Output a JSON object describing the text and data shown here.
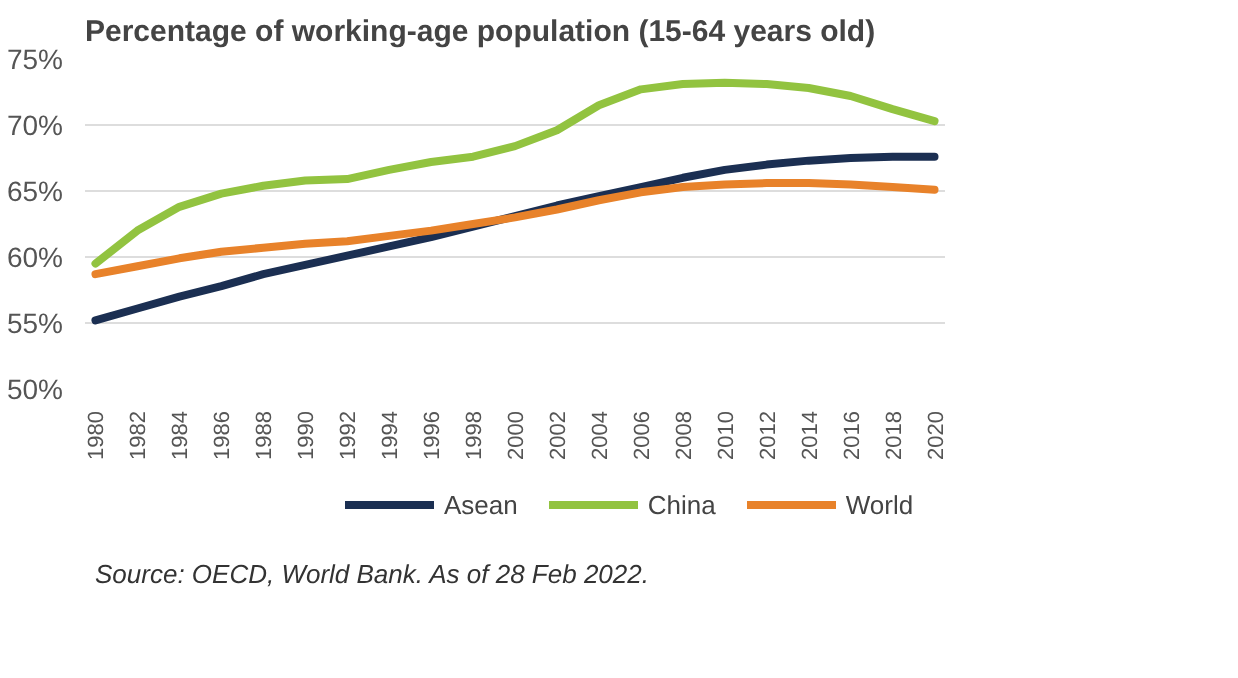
{
  "chart_data": {
    "type": "line",
    "title": "Percentage of working-age population (15-64 years old)",
    "x": [
      1980,
      1982,
      1984,
      1986,
      1988,
      1990,
      1992,
      1994,
      1996,
      1998,
      2000,
      2002,
      2004,
      2006,
      2008,
      2010,
      2012,
      2014,
      2016,
      2018,
      2020
    ],
    "series": [
      {
        "name": "Asean",
        "color": "#1b2f52",
        "values": [
          55.2,
          56.1,
          57.0,
          57.8,
          58.7,
          59.4,
          60.1,
          60.8,
          61.5,
          62.3,
          63.1,
          63.9,
          64.6,
          65.3,
          66.0,
          66.6,
          67.0,
          67.3,
          67.5,
          67.6,
          67.6
        ]
      },
      {
        "name": "China",
        "color": "#92c340",
        "values": [
          59.5,
          62.0,
          63.8,
          64.8,
          65.4,
          65.8,
          65.9,
          66.6,
          67.2,
          67.6,
          68.4,
          69.6,
          71.5,
          72.7,
          73.1,
          73.2,
          73.1,
          72.8,
          72.2,
          71.2,
          70.3
        ]
      },
      {
        "name": "World",
        "color": "#e8822a",
        "values": [
          58.7,
          59.3,
          59.9,
          60.4,
          60.7,
          61.0,
          61.2,
          61.6,
          62.0,
          62.5,
          63.0,
          63.6,
          64.3,
          64.9,
          65.3,
          65.5,
          65.6,
          65.6,
          65.5,
          65.3,
          65.1
        ]
      }
    ],
    "xlim": [
      1979.5,
      2020.5
    ],
    "xticks": [
      1980,
      1982,
      1984,
      1986,
      1988,
      1990,
      1992,
      1994,
      1996,
      1998,
      2000,
      2002,
      2004,
      2006,
      2008,
      2010,
      2012,
      2014,
      2016,
      2018,
      2020
    ],
    "ylim": [
      50,
      75
    ],
    "yticks": [
      {
        "value": 50,
        "label": "50%"
      },
      {
        "value": 55,
        "label": "55%"
      },
      {
        "value": 60,
        "label": "60%"
      },
      {
        "value": 65,
        "label": "65%"
      },
      {
        "value": 70,
        "label": "70%"
      },
      {
        "value": 75,
        "label": "75%"
      }
    ],
    "grid": "y",
    "legend": "bottom",
    "marker": "none",
    "line_style": "solid",
    "annotations": [
      "Source: OECD, World Bank. As of 28 Feb 2022."
    ]
  }
}
